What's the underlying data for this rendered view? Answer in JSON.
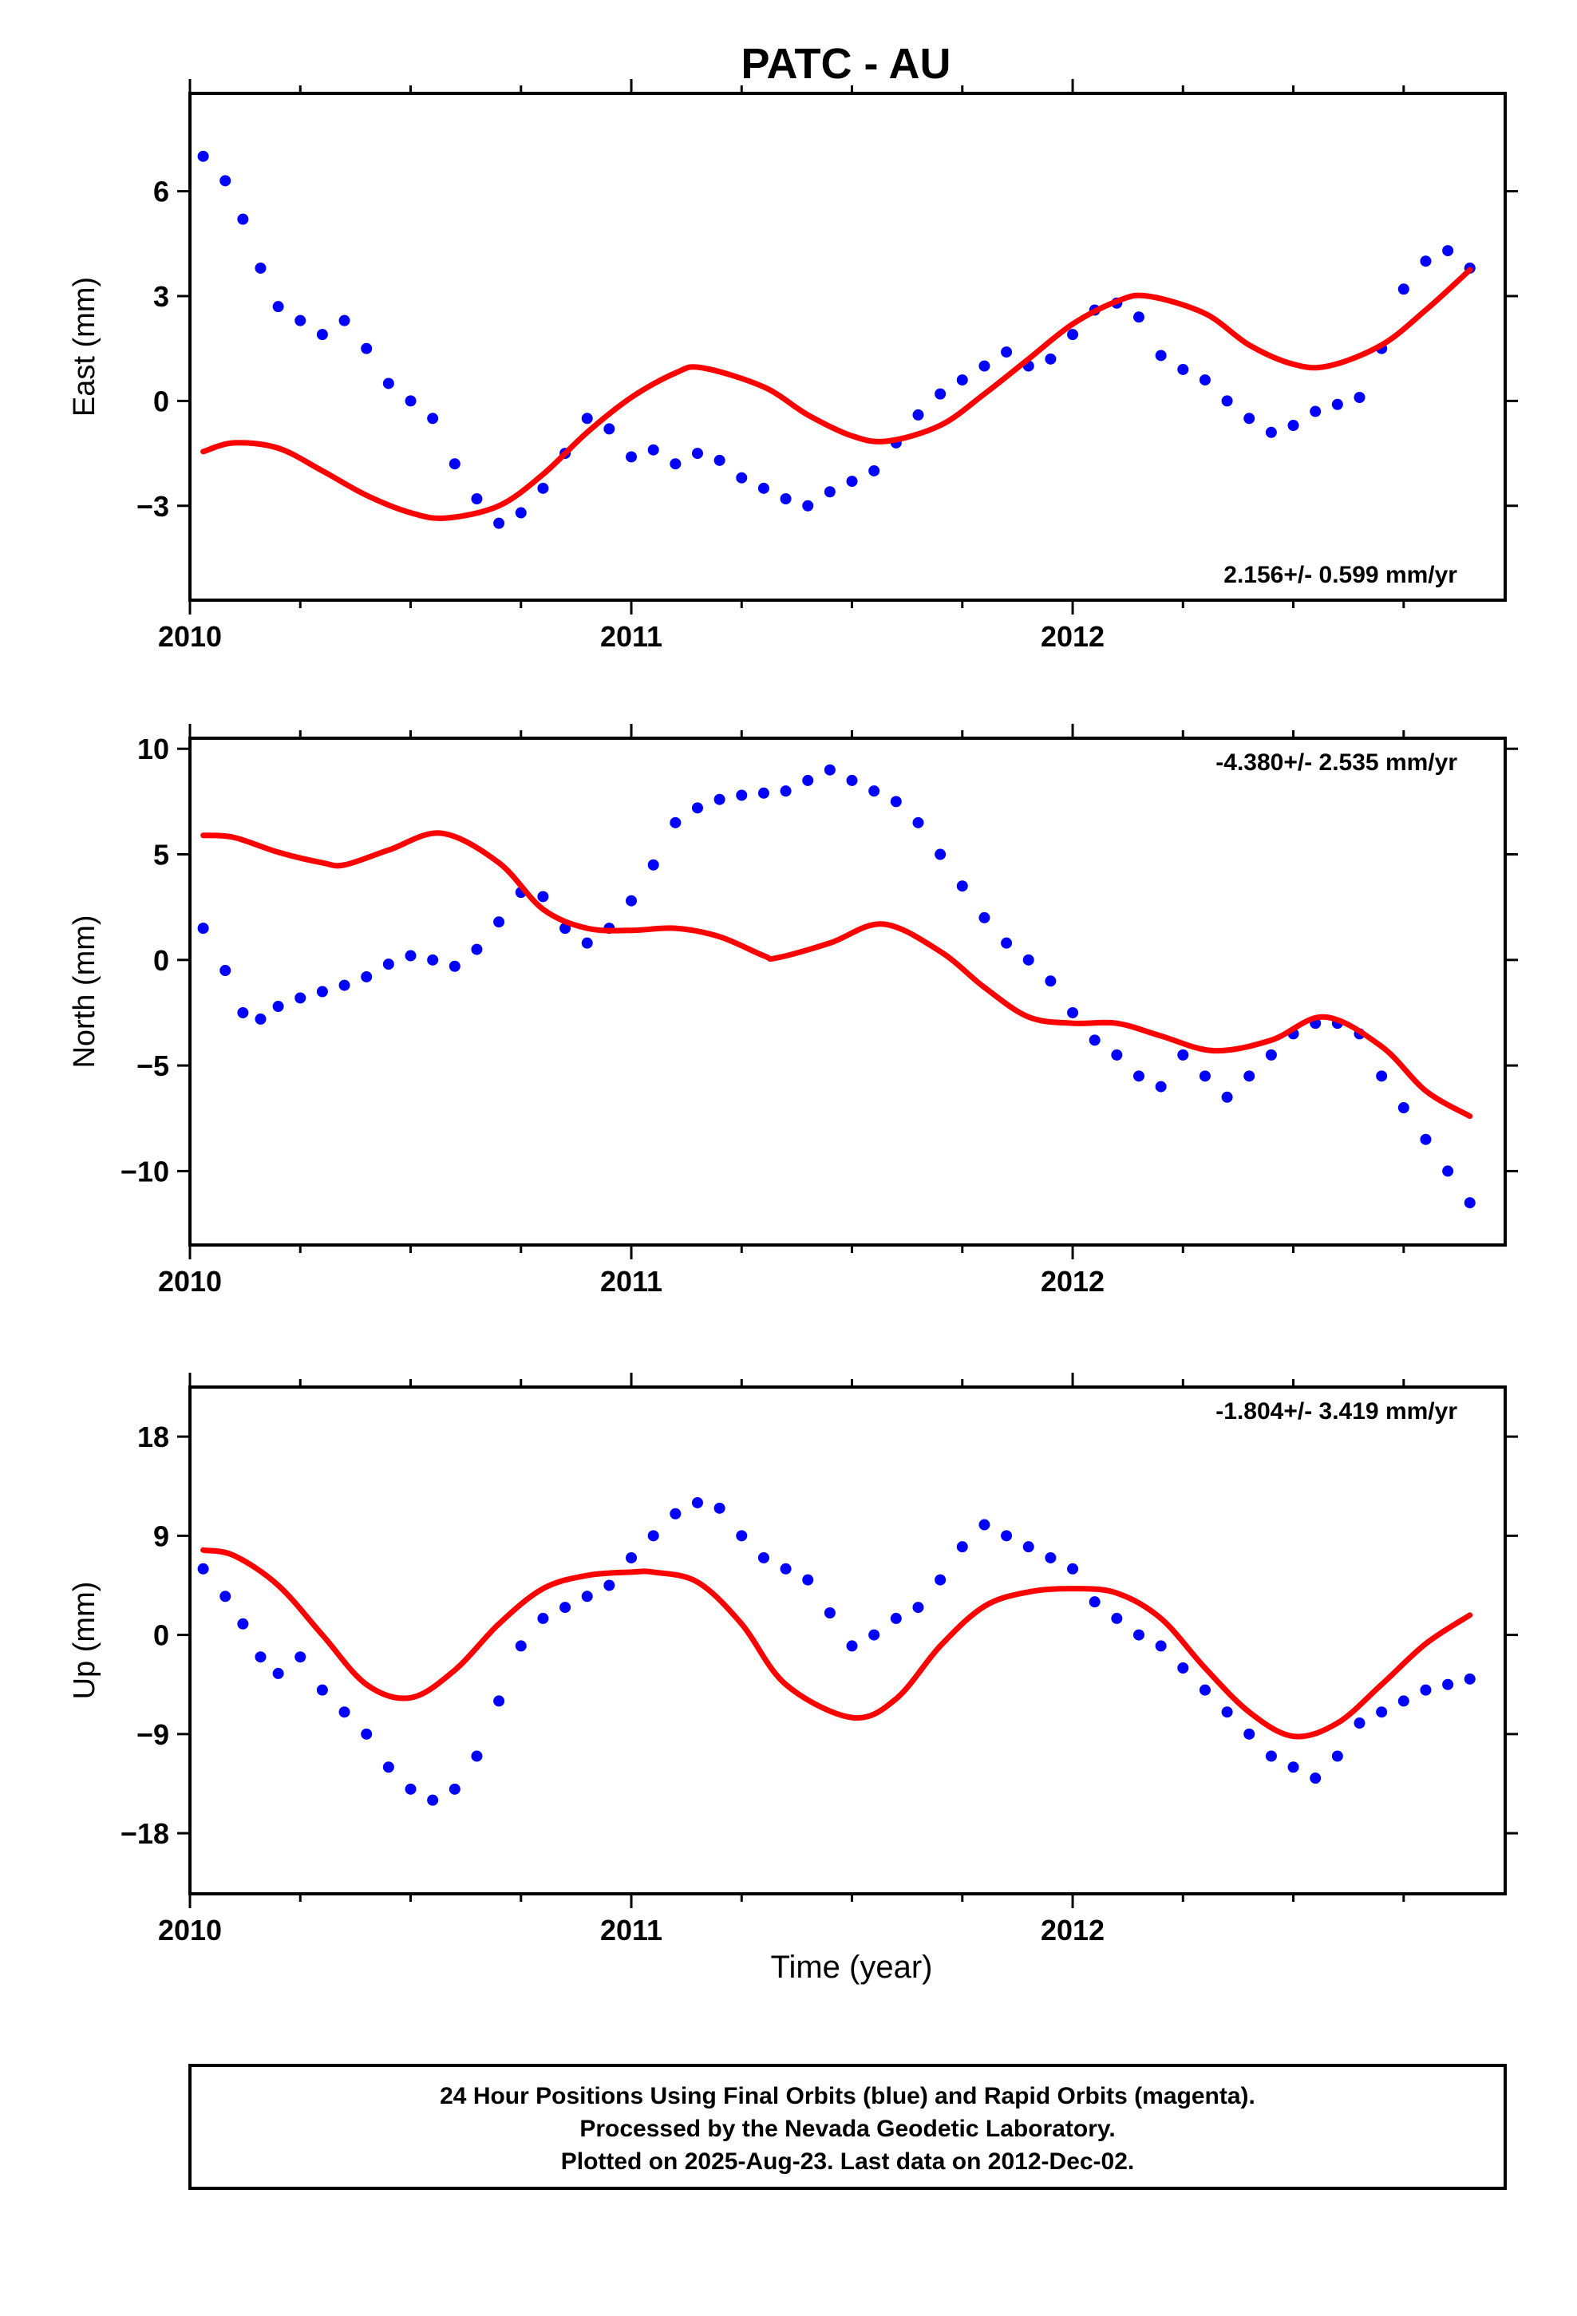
{
  "title": "PATC - AU",
  "xlabel": "Time (year)",
  "colors": {
    "points": "#0000ff",
    "model": "#ff0000",
    "frame": "#000000"
  },
  "footer": {
    "lines": [
      "24 Hour Positions Using Final Orbits (blue) and Rapid Orbits (magenta).",
      "Processed by the Nevada Geodetic Laboratory.",
      "Plotted on 2025-Aug-23. Last data on 2012-Dec-02."
    ]
  },
  "chart_data": [
    {
      "type": "scatter",
      "ylabel": "East (mm)",
      "xlim": [
        2010.0,
        2012.98
      ],
      "ylim": [
        -5.7,
        8.8
      ],
      "xticks": [
        2010,
        2011,
        2012
      ],
      "xtick_labels": [
        "2010",
        "2011",
        "2012"
      ],
      "yticks": [
        -3,
        0,
        3,
        6
      ],
      "ytick_labels": [
        "−3",
        "0",
        "3",
        "6"
      ],
      "rate_label": "2.156+/- 0.599 mm/yr",
      "rate_position": "bottom-right",
      "series": [
        {
          "kind": "points",
          "x": [
            2010.03,
            2010.08,
            2010.12,
            2010.16,
            2010.2,
            2010.25,
            2010.3,
            2010.35,
            2010.4,
            2010.45,
            2010.5,
            2010.55,
            2010.6,
            2010.65,
            2010.7,
            2010.75,
            2010.8,
            2010.85,
            2010.9,
            2010.95,
            2011.0,
            2011.05,
            2011.1,
            2011.15,
            2011.2,
            2011.25,
            2011.3,
            2011.35,
            2011.4,
            2011.45,
            2011.5,
            2011.55,
            2011.6,
            2011.65,
            2011.7,
            2011.75,
            2011.8,
            2011.85,
            2011.9,
            2011.95,
            2012.0,
            2012.05,
            2012.1,
            2012.15,
            2012.2,
            2012.25,
            2012.3,
            2012.35,
            2012.4,
            2012.45,
            2012.5,
            2012.55,
            2012.6,
            2012.65,
            2012.7,
            2012.75,
            2012.8,
            2012.85,
            2012.9
          ],
          "y": [
            7.0,
            6.3,
            5.2,
            3.8,
            2.7,
            2.3,
            1.9,
            2.3,
            1.5,
            0.5,
            0.0,
            -0.5,
            -1.8,
            -2.8,
            -3.5,
            -3.2,
            -2.5,
            -1.5,
            -0.5,
            -0.8,
            -1.6,
            -1.4,
            -1.8,
            -1.5,
            -1.7,
            -2.2,
            -2.5,
            -2.8,
            -3.0,
            -2.6,
            -2.3,
            -2.0,
            -1.2,
            -0.4,
            0.2,
            0.6,
            1.0,
            1.4,
            1.0,
            1.2,
            1.9,
            2.6,
            2.8,
            2.4,
            1.3,
            0.9,
            0.6,
            0.0,
            -0.5,
            -0.9,
            -0.7,
            -0.3,
            -0.1,
            0.1,
            1.5,
            3.2,
            4.0,
            4.3,
            3.8
          ]
        },
        {
          "kind": "model",
          "x": [
            2010.03,
            2010.1,
            2010.2,
            2010.3,
            2010.4,
            2010.5,
            2010.58,
            2010.7,
            2010.8,
            2010.9,
            2011.0,
            2011.1,
            2011.16,
            2011.3,
            2011.4,
            2011.5,
            2011.58,
            2011.7,
            2011.8,
            2011.9,
            2012.0,
            2012.1,
            2012.17,
            2012.3,
            2012.4,
            2012.5,
            2012.58,
            2012.7,
            2012.8,
            2012.9
          ],
          "y": [
            -1.45,
            -1.2,
            -1.35,
            -2.0,
            -2.7,
            -3.2,
            -3.35,
            -3.0,
            -2.1,
            -0.9,
            0.1,
            0.8,
            0.95,
            0.4,
            -0.4,
            -1.0,
            -1.15,
            -0.7,
            0.2,
            1.2,
            2.2,
            2.85,
            3.0,
            2.5,
            1.6,
            1.05,
            1.0,
            1.6,
            2.6,
            3.75
          ]
        }
      ]
    },
    {
      "type": "scatter",
      "ylabel": "North (mm)",
      "xlim": [
        2010.0,
        2012.98
      ],
      "ylim": [
        -13.5,
        10.5
      ],
      "xticks": [
        2010,
        2011,
        2012
      ],
      "xtick_labels": [
        "2010",
        "2011",
        "2012"
      ],
      "yticks": [
        -10,
        -5,
        0,
        5,
        10
      ],
      "ytick_labels": [
        "−10",
        "−5",
        "0",
        "5",
        "10"
      ],
      "rate_label": "-4.380+/- 2.535 mm/yr",
      "rate_position": "top-right",
      "series": [
        {
          "kind": "points",
          "x": [
            2010.03,
            2010.08,
            2010.12,
            2010.16,
            2010.2,
            2010.25,
            2010.3,
            2010.35,
            2010.4,
            2010.45,
            2010.5,
            2010.55,
            2010.6,
            2010.65,
            2010.7,
            2010.75,
            2010.8,
            2010.85,
            2010.9,
            2010.95,
            2011.0,
            2011.05,
            2011.1,
            2011.15,
            2011.2,
            2011.25,
            2011.3,
            2011.35,
            2011.4,
            2011.45,
            2011.5,
            2011.55,
            2011.6,
            2011.65,
            2011.7,
            2011.75,
            2011.8,
            2011.85,
            2011.9,
            2011.95,
            2012.0,
            2012.05,
            2012.1,
            2012.15,
            2012.2,
            2012.25,
            2012.3,
            2012.35,
            2012.4,
            2012.45,
            2012.5,
            2012.55,
            2012.6,
            2012.65,
            2012.7,
            2012.75,
            2012.8,
            2012.85,
            2012.9
          ],
          "y": [
            1.5,
            -0.5,
            -2.5,
            -2.8,
            -2.2,
            -1.8,
            -1.5,
            -1.2,
            -0.8,
            -0.2,
            0.2,
            0.0,
            -0.3,
            0.5,
            1.8,
            3.2,
            3.0,
            1.5,
            0.8,
            1.5,
            2.8,
            4.5,
            6.5,
            7.2,
            7.6,
            7.8,
            7.9,
            8.0,
            8.5,
            9.0,
            8.5,
            8.0,
            7.5,
            6.5,
            5.0,
            3.5,
            2.0,
            0.8,
            0.0,
            -1.0,
            -2.5,
            -3.8,
            -4.5,
            -5.5,
            -6.0,
            -4.5,
            -5.5,
            -6.5,
            -5.5,
            -4.5,
            -3.5,
            -3.0,
            -3.0,
            -3.5,
            -5.5,
            -7.0,
            -8.5,
            -10.0,
            -11.5
          ]
        },
        {
          "kind": "model",
          "x": [
            2010.03,
            2010.1,
            2010.2,
            2010.3,
            2010.35,
            2010.45,
            2010.57,
            2010.7,
            2010.8,
            2010.9,
            2011.0,
            2011.1,
            2011.2,
            2011.3,
            2011.33,
            2011.45,
            2011.57,
            2011.7,
            2011.8,
            2011.9,
            2012.0,
            2012.1,
            2012.2,
            2012.32,
            2012.45,
            2012.57,
            2012.7,
            2012.8,
            2012.9
          ],
          "y": [
            5.9,
            5.8,
            5.1,
            4.6,
            4.5,
            5.2,
            6.0,
            4.6,
            2.4,
            1.5,
            1.4,
            1.5,
            1.1,
            0.2,
            0.1,
            0.8,
            1.7,
            0.4,
            -1.3,
            -2.7,
            -3.0,
            -3.0,
            -3.6,
            -4.3,
            -3.8,
            -2.7,
            -4.1,
            -6.2,
            -7.4
          ]
        }
      ]
    },
    {
      "type": "scatter",
      "ylabel": "Up (mm)",
      "xlim": [
        2010.0,
        2012.98
      ],
      "ylim": [
        -23.5,
        22.5
      ],
      "xticks": [
        2010,
        2011,
        2012
      ],
      "xtick_labels": [
        "2010",
        "2011",
        "2012"
      ],
      "yticks": [
        -18,
        -9,
        0,
        9,
        18
      ],
      "ytick_labels": [
        "−18",
        "−9",
        "0",
        "9",
        "18"
      ],
      "rate_label": "-1.804+/- 3.419 mm/yr",
      "rate_position": "top-right",
      "series": [
        {
          "kind": "points",
          "x": [
            2010.03,
            2010.08,
            2010.12,
            2010.16,
            2010.2,
            2010.25,
            2010.3,
            2010.35,
            2010.4,
            2010.45,
            2010.5,
            2010.55,
            2010.6,
            2010.65,
            2010.7,
            2010.75,
            2010.8,
            2010.85,
            2010.9,
            2010.95,
            2011.0,
            2011.05,
            2011.1,
            2011.15,
            2011.2,
            2011.25,
            2011.3,
            2011.35,
            2011.4,
            2011.45,
            2011.5,
            2011.55,
            2011.6,
            2011.65,
            2011.7,
            2011.75,
            2011.8,
            2011.85,
            2011.9,
            2011.95,
            2012.0,
            2012.05,
            2012.1,
            2012.15,
            2012.2,
            2012.25,
            2012.3,
            2012.35,
            2012.4,
            2012.45,
            2012.5,
            2012.55,
            2012.6,
            2012.65,
            2012.7,
            2012.75,
            2012.8,
            2012.85,
            2012.9
          ],
          "y": [
            6.0,
            3.5,
            1.0,
            -2.0,
            -3.5,
            -2.0,
            -5.0,
            -7.0,
            -9.0,
            -12.0,
            -14.0,
            -15.0,
            -14.0,
            -11.0,
            -6.0,
            -1.0,
            1.5,
            2.5,
            3.5,
            4.5,
            7.0,
            9.0,
            11.0,
            12.0,
            11.5,
            9.0,
            7.0,
            6.0,
            5.0,
            2.0,
            -1.0,
            0.0,
            1.5,
            2.5,
            5.0,
            8.0,
            10.0,
            9.0,
            8.0,
            7.0,
            6.0,
            3.0,
            1.5,
            0.0,
            -1.0,
            -3.0,
            -5.0,
            -7.0,
            -9.0,
            -11.0,
            -12.0,
            -13.0,
            -11.0,
            -8.0,
            -7.0,
            -6.0,
            -5.0,
            -4.5,
            -4.0
          ]
        },
        {
          "kind": "model",
          "x": [
            2010.03,
            2010.1,
            2010.2,
            2010.3,
            2010.4,
            2010.5,
            2010.6,
            2010.7,
            2010.8,
            2010.9,
            2011.0,
            2011.05,
            2011.15,
            2011.25,
            2011.35,
            2011.5,
            2011.6,
            2011.7,
            2011.8,
            2011.9,
            2012.0,
            2012.1,
            2012.2,
            2012.3,
            2012.4,
            2012.5,
            2012.6,
            2012.7,
            2012.8,
            2012.9
          ],
          "y": [
            7.7,
            7.2,
            4.5,
            0.0,
            -4.5,
            -5.7,
            -3.2,
            1.0,
            4.2,
            5.4,
            5.7,
            5.7,
            4.8,
            1.0,
            -4.5,
            -7.5,
            -5.8,
            -1.0,
            2.6,
            3.9,
            4.2,
            3.8,
            1.5,
            -3.0,
            -7.0,
            -9.2,
            -8.0,
            -4.5,
            -0.8,
            1.8
          ]
        }
      ]
    }
  ]
}
